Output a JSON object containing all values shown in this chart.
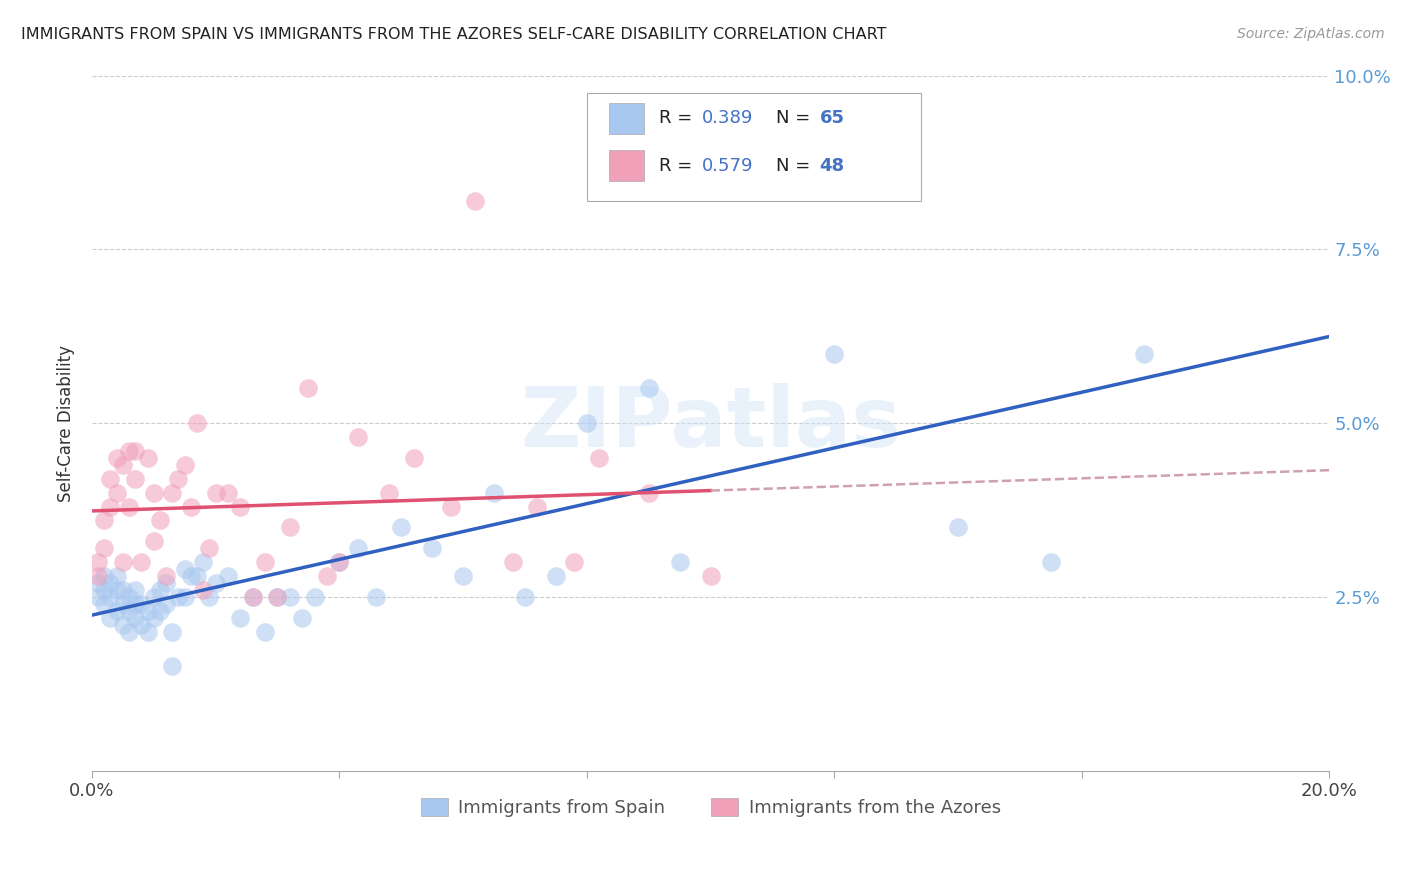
{
  "title": "IMMIGRANTS FROM SPAIN VS IMMIGRANTS FROM THE AZORES SELF-CARE DISABILITY CORRELATION CHART",
  "source": "Source: ZipAtlas.com",
  "xlabel_legend_1": "Immigrants from Spain",
  "xlabel_legend_2": "Immigrants from the Azores",
  "ylabel": "Self-Care Disability",
  "xlim": [
    0.0,
    0.2
  ],
  "ylim": [
    0.0,
    0.1
  ],
  "yticks": [
    0.025,
    0.05,
    0.075,
    0.1
  ],
  "ytick_labels": [
    "2.5%",
    "5.0%",
    "7.5%",
    "10.0%"
  ],
  "xtick_vals": [
    0.0,
    0.04,
    0.08,
    0.12,
    0.16,
    0.2
  ],
  "color_spain": "#a8c8f0",
  "color_azores": "#f0a0b8",
  "trendline_spain_color": "#3060c0",
  "trendline_azores_color": "#e05070",
  "trendline_azores_ext_color": "#d0a0b0",
  "watermark": "ZIPatlas",
  "legend_R_spain": "R = 0.389",
  "legend_N_spain": "N = 65",
  "legend_R_azores": "R = 0.579",
  "legend_N_azores": "N = 48",
  "spain_x": [
    0.001,
    0.001,
    0.002,
    0.002,
    0.002,
    0.003,
    0.003,
    0.003,
    0.004,
    0.004,
    0.004,
    0.005,
    0.005,
    0.005,
    0.006,
    0.006,
    0.006,
    0.007,
    0.007,
    0.007,
    0.008,
    0.008,
    0.009,
    0.009,
    0.01,
    0.01,
    0.011,
    0.011,
    0.012,
    0.012,
    0.013,
    0.013,
    0.014,
    0.015,
    0.015,
    0.016,
    0.017,
    0.018,
    0.019,
    0.02,
    0.022,
    0.024,
    0.026,
    0.028,
    0.03,
    0.032,
    0.034,
    0.036,
    0.04,
    0.043,
    0.046,
    0.05,
    0.055,
    0.06,
    0.065,
    0.07,
    0.075,
    0.08,
    0.09,
    0.095,
    0.1,
    0.12,
    0.14,
    0.155,
    0.17
  ],
  "spain_y": [
    0.025,
    0.027,
    0.024,
    0.026,
    0.028,
    0.022,
    0.025,
    0.027,
    0.023,
    0.026,
    0.028,
    0.021,
    0.024,
    0.026,
    0.02,
    0.023,
    0.025,
    0.022,
    0.024,
    0.026,
    0.021,
    0.024,
    0.02,
    0.023,
    0.022,
    0.025,
    0.023,
    0.026,
    0.024,
    0.027,
    0.015,
    0.02,
    0.025,
    0.025,
    0.029,
    0.028,
    0.028,
    0.03,
    0.025,
    0.027,
    0.028,
    0.022,
    0.025,
    0.02,
    0.025,
    0.025,
    0.022,
    0.025,
    0.03,
    0.032,
    0.025,
    0.035,
    0.032,
    0.028,
    0.04,
    0.025,
    0.028,
    0.05,
    0.055,
    0.03,
    0.095,
    0.06,
    0.035,
    0.03,
    0.06
  ],
  "azores_x": [
    0.001,
    0.001,
    0.002,
    0.002,
    0.003,
    0.003,
    0.004,
    0.004,
    0.005,
    0.005,
    0.006,
    0.006,
    0.007,
    0.007,
    0.008,
    0.009,
    0.01,
    0.01,
    0.011,
    0.012,
    0.013,
    0.014,
    0.015,
    0.016,
    0.017,
    0.018,
    0.019,
    0.02,
    0.022,
    0.024,
    0.026,
    0.028,
    0.03,
    0.032,
    0.035,
    0.038,
    0.04,
    0.043,
    0.048,
    0.052,
    0.058,
    0.062,
    0.068,
    0.072,
    0.078,
    0.082,
    0.09,
    0.1
  ],
  "azores_y": [
    0.028,
    0.03,
    0.032,
    0.036,
    0.038,
    0.042,
    0.04,
    0.045,
    0.03,
    0.044,
    0.038,
    0.046,
    0.042,
    0.046,
    0.03,
    0.045,
    0.04,
    0.033,
    0.036,
    0.028,
    0.04,
    0.042,
    0.044,
    0.038,
    0.05,
    0.026,
    0.032,
    0.04,
    0.04,
    0.038,
    0.025,
    0.03,
    0.025,
    0.035,
    0.055,
    0.028,
    0.03,
    0.048,
    0.04,
    0.045,
    0.038,
    0.082,
    0.03,
    0.038,
    0.03,
    0.045,
    0.04,
    0.028
  ]
}
